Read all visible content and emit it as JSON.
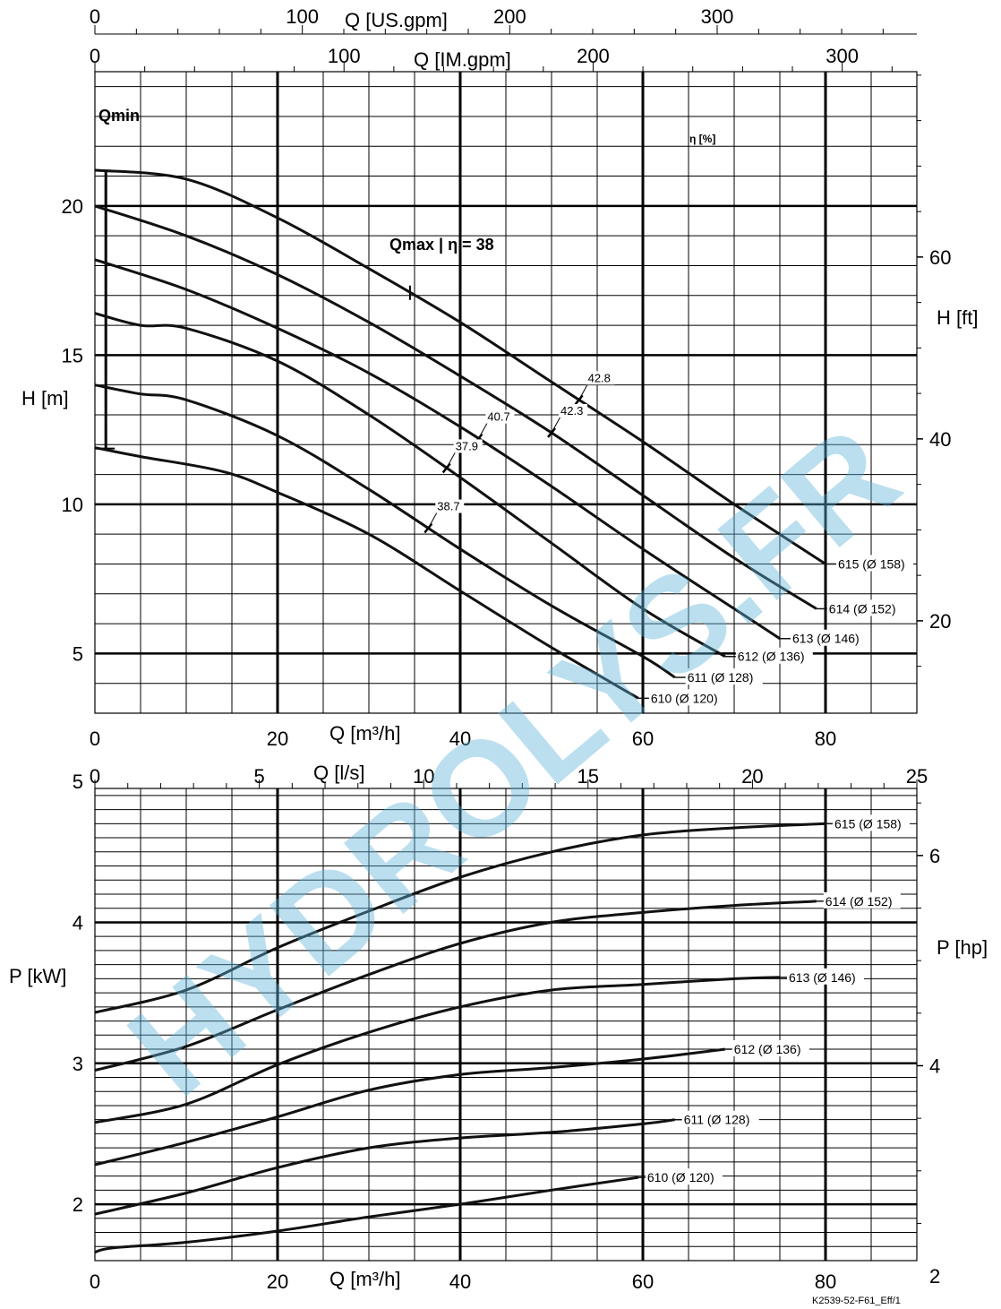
{
  "chart_data": [
    {
      "type": "line",
      "title": "",
      "xlabel": "Q [m³/h]",
      "ylabel": "H [m]",
      "ylabel_right": "H [ft]",
      "xlim": [
        0,
        90
      ],
      "ylim": [
        3,
        24.5
      ],
      "x_ticks": [
        "0",
        "20",
        "40",
        "60",
        "80"
      ],
      "y_ticks": [
        "5",
        "10",
        "15",
        "20"
      ],
      "y2_ticks": [
        "20",
        "40",
        "60"
      ],
      "top_axis_1": {
        "label": "Q [US.gpm]",
        "ticks": [
          "0",
          "100",
          "200",
          "300"
        ]
      },
      "top_axis_2": {
        "label": "Q [IM.gpm]",
        "ticks": [
          "0",
          "100",
          "200",
          "300"
        ]
      },
      "grid": true,
      "qmin_label": "Qmin",
      "qmin_x": 1,
      "qmax_label": "Qmax | η = 38",
      "eta_label": "η [%]",
      "series": [
        {
          "name": "615 (Ø 158)",
          "x": [
            0,
            10,
            20,
            30,
            40,
            50,
            60,
            70,
            80
          ],
          "y": [
            21.2,
            20.9,
            19.6,
            17.9,
            16.1,
            14.1,
            12.1,
            10.0,
            8.0
          ]
        },
        {
          "name": "614 (Ø 152)",
          "x": [
            0,
            10,
            20,
            30,
            40,
            50,
            60,
            70,
            79
          ],
          "y": [
            20.0,
            19.0,
            17.7,
            16.1,
            14.3,
            12.4,
            10.3,
            8.2,
            6.5
          ]
        },
        {
          "name": "613 (Ø 146)",
          "x": [
            0,
            10,
            20,
            30,
            40,
            50,
            60,
            70,
            75
          ],
          "y": [
            18.2,
            17.2,
            15.9,
            14.4,
            12.6,
            10.6,
            8.5,
            6.5,
            5.5
          ]
        },
        {
          "name": "612 (Ø 136)",
          "x": [
            0,
            5,
            10,
            20,
            30,
            40,
            50,
            60,
            69
          ],
          "y": [
            16.4,
            16.0,
            15.9,
            14.8,
            13.0,
            10.9,
            8.7,
            6.5,
            4.9
          ]
        },
        {
          "name": "611 (Ø 128)",
          "x": [
            0,
            5,
            10,
            20,
            30,
            40,
            50,
            60,
            63.5
          ],
          "y": [
            14.0,
            13.7,
            13.5,
            12.3,
            10.5,
            8.5,
            6.6,
            4.9,
            4.2
          ]
        },
        {
          "name": "610 (Ø 120)",
          "x": [
            0,
            5,
            14,
            20,
            30,
            40,
            50,
            59.5
          ],
          "y": [
            11.9,
            11.6,
            11.1,
            10.4,
            9.0,
            7.1,
            5.2,
            3.5
          ]
        }
      ],
      "efficiency_marks": [
        {
          "label": "42.8",
          "x": 53,
          "series": "615 (Ø 158)"
        },
        {
          "label": "42.3",
          "x": 50,
          "series": "614 (Ø 152)"
        },
        {
          "label": "40.7",
          "x": 42,
          "series": "613 (Ø 146)"
        },
        {
          "label": "37.9",
          "x": 38.5,
          "series": "612 (Ø 136)"
        },
        {
          "label": "38.7",
          "x": 36.5,
          "series": "611 (Ø 128)"
        }
      ]
    },
    {
      "type": "line",
      "title": "",
      "xlabel": "Q [m³/h]",
      "ylabel": "P [kW]",
      "ylabel_right": "P [hp]",
      "xlim": [
        0,
        90
      ],
      "ylim": [
        1.6,
        4.95
      ],
      "x_ticks": [
        "0",
        "20",
        "40",
        "60",
        "80"
      ],
      "y_ticks": [
        "2",
        "3",
        "4",
        "5"
      ],
      "y2_ticks": [
        "2",
        "4",
        "6"
      ],
      "top_axis": {
        "label": "Q [l/s]",
        "ticks": [
          "0",
          "5",
          "10",
          "15",
          "20",
          "25"
        ]
      },
      "grid": true,
      "series": [
        {
          "name": "615 (Ø 158)",
          "x": [
            0,
            10,
            20,
            30,
            40,
            50,
            60,
            70,
            80
          ],
          "y": [
            3.36,
            3.52,
            3.82,
            4.08,
            4.32,
            4.5,
            4.62,
            4.67,
            4.7
          ]
        },
        {
          "name": "614 (Ø 152)",
          "x": [
            0,
            10,
            20,
            30,
            40,
            50,
            60,
            70,
            79
          ],
          "y": [
            2.95,
            3.12,
            3.38,
            3.63,
            3.85,
            4.0,
            4.07,
            4.12,
            4.15
          ]
        },
        {
          "name": "613 (Ø 146)",
          "x": [
            0,
            10,
            20,
            30,
            40,
            50,
            60,
            70,
            75
          ],
          "y": [
            2.58,
            2.71,
            2.99,
            3.22,
            3.4,
            3.52,
            3.56,
            3.6,
            3.61
          ]
        },
        {
          "name": "612 (Ø 136)",
          "x": [
            0,
            10,
            20,
            30,
            40,
            50,
            60,
            69
          ],
          "y": [
            2.28,
            2.44,
            2.62,
            2.81,
            2.92,
            2.97,
            3.03,
            3.1
          ]
        },
        {
          "name": "611 (Ø 128)",
          "x": [
            0,
            10,
            20,
            30,
            40,
            50,
            60,
            63.5
          ],
          "y": [
            1.93,
            2.08,
            2.26,
            2.4,
            2.47,
            2.51,
            2.57,
            2.6
          ]
        },
        {
          "name": "610 (Ø 120)",
          "x": [
            0,
            2,
            10,
            20,
            30,
            40,
            50,
            59.5
          ],
          "y": [
            1.66,
            1.69,
            1.73,
            1.81,
            1.91,
            2.0,
            2.1,
            2.19
          ]
        }
      ]
    }
  ],
  "watermark": "HYDROLYS.FR",
  "reference": "K2539-52-F61_Eff/1"
}
